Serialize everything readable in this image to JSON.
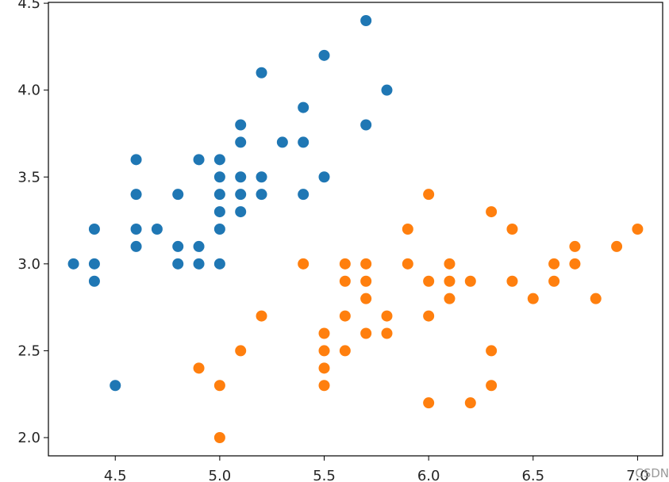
{
  "chart_data": {
    "type": "scatter",
    "xlim": [
      4.18,
      7.12
    ],
    "ylim": [
      1.895,
      4.505
    ],
    "xticks": [
      4.5,
      5.0,
      5.5,
      6.0,
      6.5,
      7.0
    ],
    "yticks": [
      2.0,
      2.5,
      3.0,
      3.5,
      4.0,
      4.5
    ],
    "xtick_labels": [
      "4.5",
      "5.0",
      "5.5",
      "6.0",
      "6.5",
      "7.0"
    ],
    "ytick_labels": [
      "2.0",
      "2.5",
      "3.0",
      "3.5",
      "4.0",
      "4.5"
    ],
    "grid": false,
    "series": [
      {
        "color": "#1f77b4",
        "points": [
          [
            5.7,
            4.4
          ],
          [
            5.5,
            4.2
          ],
          [
            5.2,
            4.1
          ],
          [
            5.8,
            4.0
          ],
          [
            5.4,
            3.9
          ],
          [
            5.1,
            3.8
          ],
          [
            5.7,
            3.8
          ],
          [
            5.1,
            3.7
          ],
          [
            5.3,
            3.7
          ],
          [
            5.4,
            3.7
          ],
          [
            4.6,
            3.6
          ],
          [
            4.9,
            3.6
          ],
          [
            5.0,
            3.6
          ],
          [
            5.0,
            3.5
          ],
          [
            5.1,
            3.5
          ],
          [
            5.2,
            3.5
          ],
          [
            5.5,
            3.5
          ],
          [
            4.6,
            3.4
          ],
          [
            4.8,
            3.4
          ],
          [
            5.0,
            3.4
          ],
          [
            5.1,
            3.4
          ],
          [
            5.2,
            3.4
          ],
          [
            5.4,
            3.4
          ],
          [
            5.0,
            3.3
          ],
          [
            5.1,
            3.3
          ],
          [
            4.4,
            3.2
          ],
          [
            4.6,
            3.2
          ],
          [
            4.7,
            3.2
          ],
          [
            5.0,
            3.2
          ],
          [
            4.6,
            3.1
          ],
          [
            4.8,
            3.1
          ],
          [
            4.9,
            3.1
          ],
          [
            4.3,
            3.0
          ],
          [
            4.4,
            3.0
          ],
          [
            4.8,
            3.0
          ],
          [
            4.9,
            3.0
          ],
          [
            5.0,
            3.0
          ],
          [
            4.4,
            2.9
          ],
          [
            4.5,
            2.3
          ]
        ]
      },
      {
        "color": "#ff7f0e",
        "points": [
          [
            6.0,
            3.4
          ],
          [
            6.3,
            3.3
          ],
          [
            5.9,
            3.2
          ],
          [
            6.4,
            3.2
          ],
          [
            7.0,
            3.2
          ],
          [
            6.7,
            3.1
          ],
          [
            6.9,
            3.1
          ],
          [
            5.4,
            3.0
          ],
          [
            5.6,
            3.0
          ],
          [
            5.7,
            3.0
          ],
          [
            5.9,
            3.0
          ],
          [
            6.1,
            3.0
          ],
          [
            6.6,
            3.0
          ],
          [
            6.7,
            3.0
          ],
          [
            5.6,
            2.9
          ],
          [
            5.7,
            2.9
          ],
          [
            6.0,
            2.9
          ],
          [
            6.1,
            2.9
          ],
          [
            6.2,
            2.9
          ],
          [
            6.4,
            2.9
          ],
          [
            6.6,
            2.9
          ],
          [
            5.7,
            2.8
          ],
          [
            6.1,
            2.8
          ],
          [
            6.5,
            2.8
          ],
          [
            6.8,
            2.8
          ],
          [
            5.2,
            2.7
          ],
          [
            5.6,
            2.7
          ],
          [
            5.8,
            2.7
          ],
          [
            6.0,
            2.7
          ],
          [
            5.5,
            2.6
          ],
          [
            5.7,
            2.6
          ],
          [
            5.8,
            2.6
          ],
          [
            5.1,
            2.5
          ],
          [
            5.5,
            2.5
          ],
          [
            5.6,
            2.5
          ],
          [
            6.3,
            2.5
          ],
          [
            4.9,
            2.4
          ],
          [
            5.5,
            2.4
          ],
          [
            5.0,
            2.3
          ],
          [
            5.5,
            2.3
          ],
          [
            6.3,
            2.3
          ],
          [
            6.0,
            2.2
          ],
          [
            6.2,
            2.2
          ],
          [
            5.0,
            2.0
          ]
        ]
      }
    ]
  },
  "watermark": "CSDN"
}
